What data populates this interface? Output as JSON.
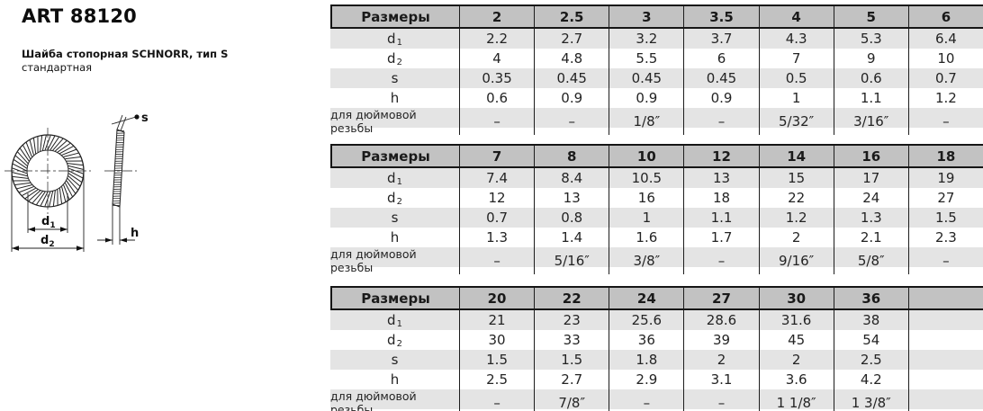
{
  "page": {
    "art_number": "ART 88120",
    "product_name": "Шайба стопорная SCHNORR, тип S",
    "product_variant": "стандартная"
  },
  "drawing": {
    "label_d1_base": "d",
    "label_d1_sub": "1",
    "label_d2_base": "d",
    "label_d2_sub": "2",
    "label_s": "s",
    "label_h": "h"
  },
  "table_meta": {
    "header_label": "Размеры",
    "row_labels": {
      "d1_base": "d",
      "d1_sub": "1",
      "d2_base": "d",
      "d2_sub": "2",
      "s": "s",
      "h": "h",
      "inch": "для дюймовой резьбы"
    }
  },
  "tables": [
    {
      "sizes": [
        "2",
        "2.5",
        "3",
        "3.5",
        "4",
        "5",
        "6"
      ],
      "d1": [
        "2.2",
        "2.7",
        "3.2",
        "3.7",
        "4.3",
        "5.3",
        "6.4"
      ],
      "d2": [
        "4",
        "4.8",
        "5.5",
        "6",
        "7",
        "9",
        "10"
      ],
      "s": [
        "0.35",
        "0.45",
        "0.45",
        "0.45",
        "0.5",
        "0.6",
        "0.7"
      ],
      "h": [
        "0.6",
        "0.9",
        "0.9",
        "0.9",
        "1",
        "1.1",
        "1.2"
      ],
      "inch": [
        "–",
        "–",
        "1/8″",
        "–",
        "5/32″",
        "3/16″",
        "–"
      ]
    },
    {
      "sizes": [
        "7",
        "8",
        "10",
        "12",
        "14",
        "16",
        "18"
      ],
      "d1": [
        "7.4",
        "8.4",
        "10.5",
        "13",
        "15",
        "17",
        "19"
      ],
      "d2": [
        "12",
        "13",
        "16",
        "18",
        "22",
        "24",
        "27"
      ],
      "s": [
        "0.7",
        "0.8",
        "1",
        "1.1",
        "1.2",
        "1.3",
        "1.5"
      ],
      "h": [
        "1.3",
        "1.4",
        "1.6",
        "1.7",
        "2",
        "2.1",
        "2.3"
      ],
      "inch": [
        "–",
        "5/16″",
        "3/8″",
        "–",
        "9/16″",
        "5/8″",
        "–"
      ]
    },
    {
      "sizes": [
        "20",
        "22",
        "24",
        "27",
        "30",
        "36",
        ""
      ],
      "d1": [
        "21",
        "23",
        "25.6",
        "28.6",
        "31.6",
        "38",
        ""
      ],
      "d2": [
        "30",
        "33",
        "36",
        "39",
        "45",
        "54",
        ""
      ],
      "s": [
        "1.5",
        "1.5",
        "1.8",
        "2",
        "2",
        "2.5",
        ""
      ],
      "h": [
        "2.5",
        "2.7",
        "2.9",
        "3.1",
        "3.6",
        "4.2",
        ""
      ],
      "inch": [
        "–",
        "7/8″",
        "–",
        "–",
        "1 1/8″",
        "1 3/8″",
        ""
      ]
    }
  ],
  "colors": {
    "header_bg": "#c2c2c2",
    "stripe_bg": "#e4e4e4",
    "line": "#161616"
  }
}
